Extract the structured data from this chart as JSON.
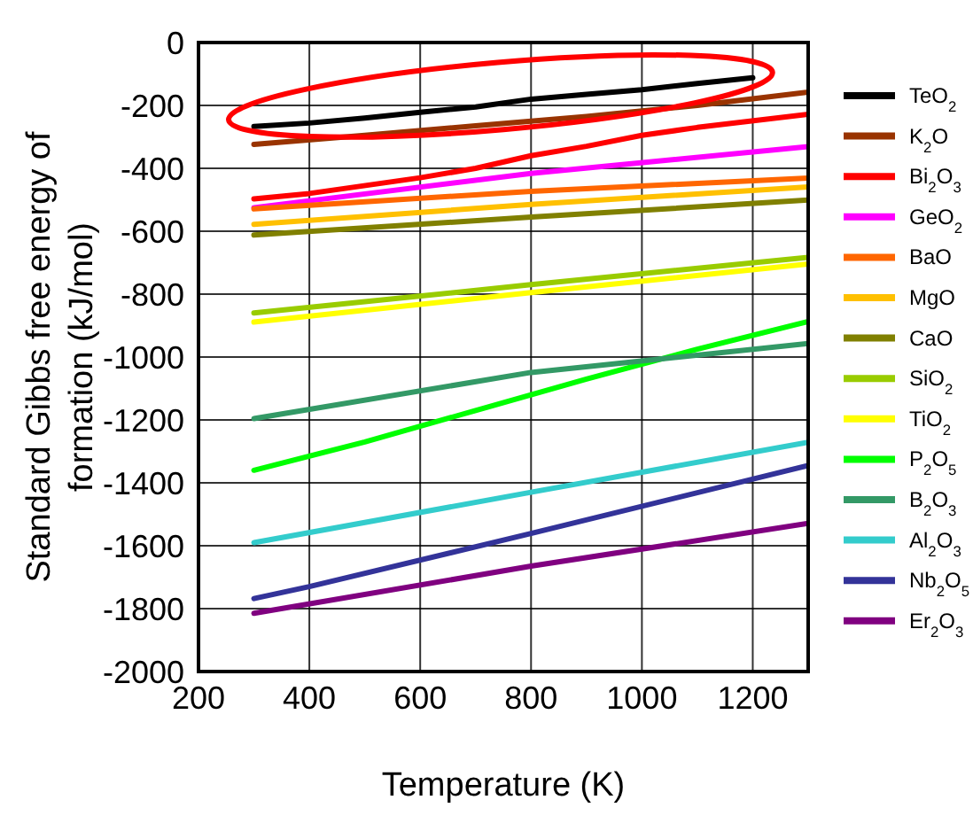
{
  "chart_data": {
    "type": "line",
    "xlabel": "Temperature (K)",
    "ylabel": "Standard Gibbs free energy of\nformation (kJ/mol)",
    "xlim": [
      200,
      1300
    ],
    "xticks": [
      200,
      400,
      600,
      800,
      1000,
      1200
    ],
    "ylim": [
      -2000,
      0
    ],
    "yticks": [
      -2000,
      -1800,
      -1600,
      -1400,
      -1200,
      -1000,
      -800,
      -600,
      -400,
      -200,
      0
    ],
    "grid": true,
    "legend": "right",
    "marker": "none",
    "line_style": "solid",
    "series": [
      {
        "name": "TeO$_{2}$",
        "color": "#000000",
        "x": [
          300,
          400,
          500,
          600,
          700,
          800,
          900,
          1000,
          1100,
          1200
        ],
        "values": [
          -267,
          -256,
          -240,
          -222,
          -205,
          -180,
          -165,
          -150,
          -130,
          -112
        ]
      },
      {
        "name": "K$_{2}$O",
        "color": "#993300",
        "x": [
          300,
          500,
          700,
          900,
          1100,
          1300
        ],
        "values": [
          -324,
          -295,
          -265,
          -235,
          -200,
          -158
        ]
      },
      {
        "name": "Bi$_{2}$O$_{3}$",
        "color": "#ff0000",
        "x": [
          300,
          400,
          600,
          700,
          800,
          900,
          1000,
          1100,
          1300
        ],
        "values": [
          -497,
          -480,
          -430,
          -400,
          -360,
          -330,
          -295,
          -270,
          -228
        ]
      },
      {
        "name": "GeO$_{2}$",
        "color": "#ff00ff",
        "x": [
          300,
          800,
          1300
        ],
        "values": [
          -525,
          -416,
          -331
        ]
      },
      {
        "name": "BaO",
        "color": "#ff6600",
        "x": [
          300,
          800,
          1300
        ],
        "values": [
          -529,
          -473,
          -431
        ]
      },
      {
        "name": "MgO",
        "color": "#ffc000",
        "x": [
          300,
          800,
          1300
        ],
        "values": [
          -578,
          -515,
          -459
        ]
      },
      {
        "name": "CaO",
        "color": "#808000",
        "x": [
          300,
          800,
          1300
        ],
        "values": [
          -612,
          -555,
          -501
        ]
      },
      {
        "name": "SiO$_{2}$",
        "color": "#99cc00",
        "x": [
          300,
          800,
          1300
        ],
        "values": [
          -860,
          -770,
          -683
        ]
      },
      {
        "name": "TiO$_{2}$",
        "color": "#ffff00",
        "x": [
          300,
          800,
          1300
        ],
        "values": [
          -889,
          -795,
          -704
        ]
      },
      {
        "name": "P$_{2}$O$_{5}$",
        "color": "#00ff00",
        "x": [
          300,
          500,
          700,
          900,
          1100,
          1300
        ],
        "values": [
          -1360,
          -1270,
          -1170,
          -1070,
          -975,
          -887
        ]
      },
      {
        "name": "B$_{2}$O$_{3}$",
        "color": "#339966",
        "x": [
          300,
          800,
          1300
        ],
        "values": [
          -1196,
          -1049,
          -957
        ]
      },
      {
        "name": "Al$_{2}$O$_{3}$",
        "color": "#33cccc",
        "x": [
          300,
          800,
          1300
        ],
        "values": [
          -1590,
          -1430,
          -1271
        ]
      },
      {
        "name": "Nb$_{2}$O$_{5}$",
        "color": "#333399",
        "x": [
          300,
          400,
          800,
          1300
        ],
        "values": [
          -1768,
          -1730,
          -1561,
          -1345
        ]
      },
      {
        "name": "Er$_{2}$O$_{3}$",
        "color": "#800080",
        "x": [
          300,
          800,
          1300
        ],
        "values": [
          -1815,
          -1665,
          -1529
        ]
      }
    ]
  }
}
